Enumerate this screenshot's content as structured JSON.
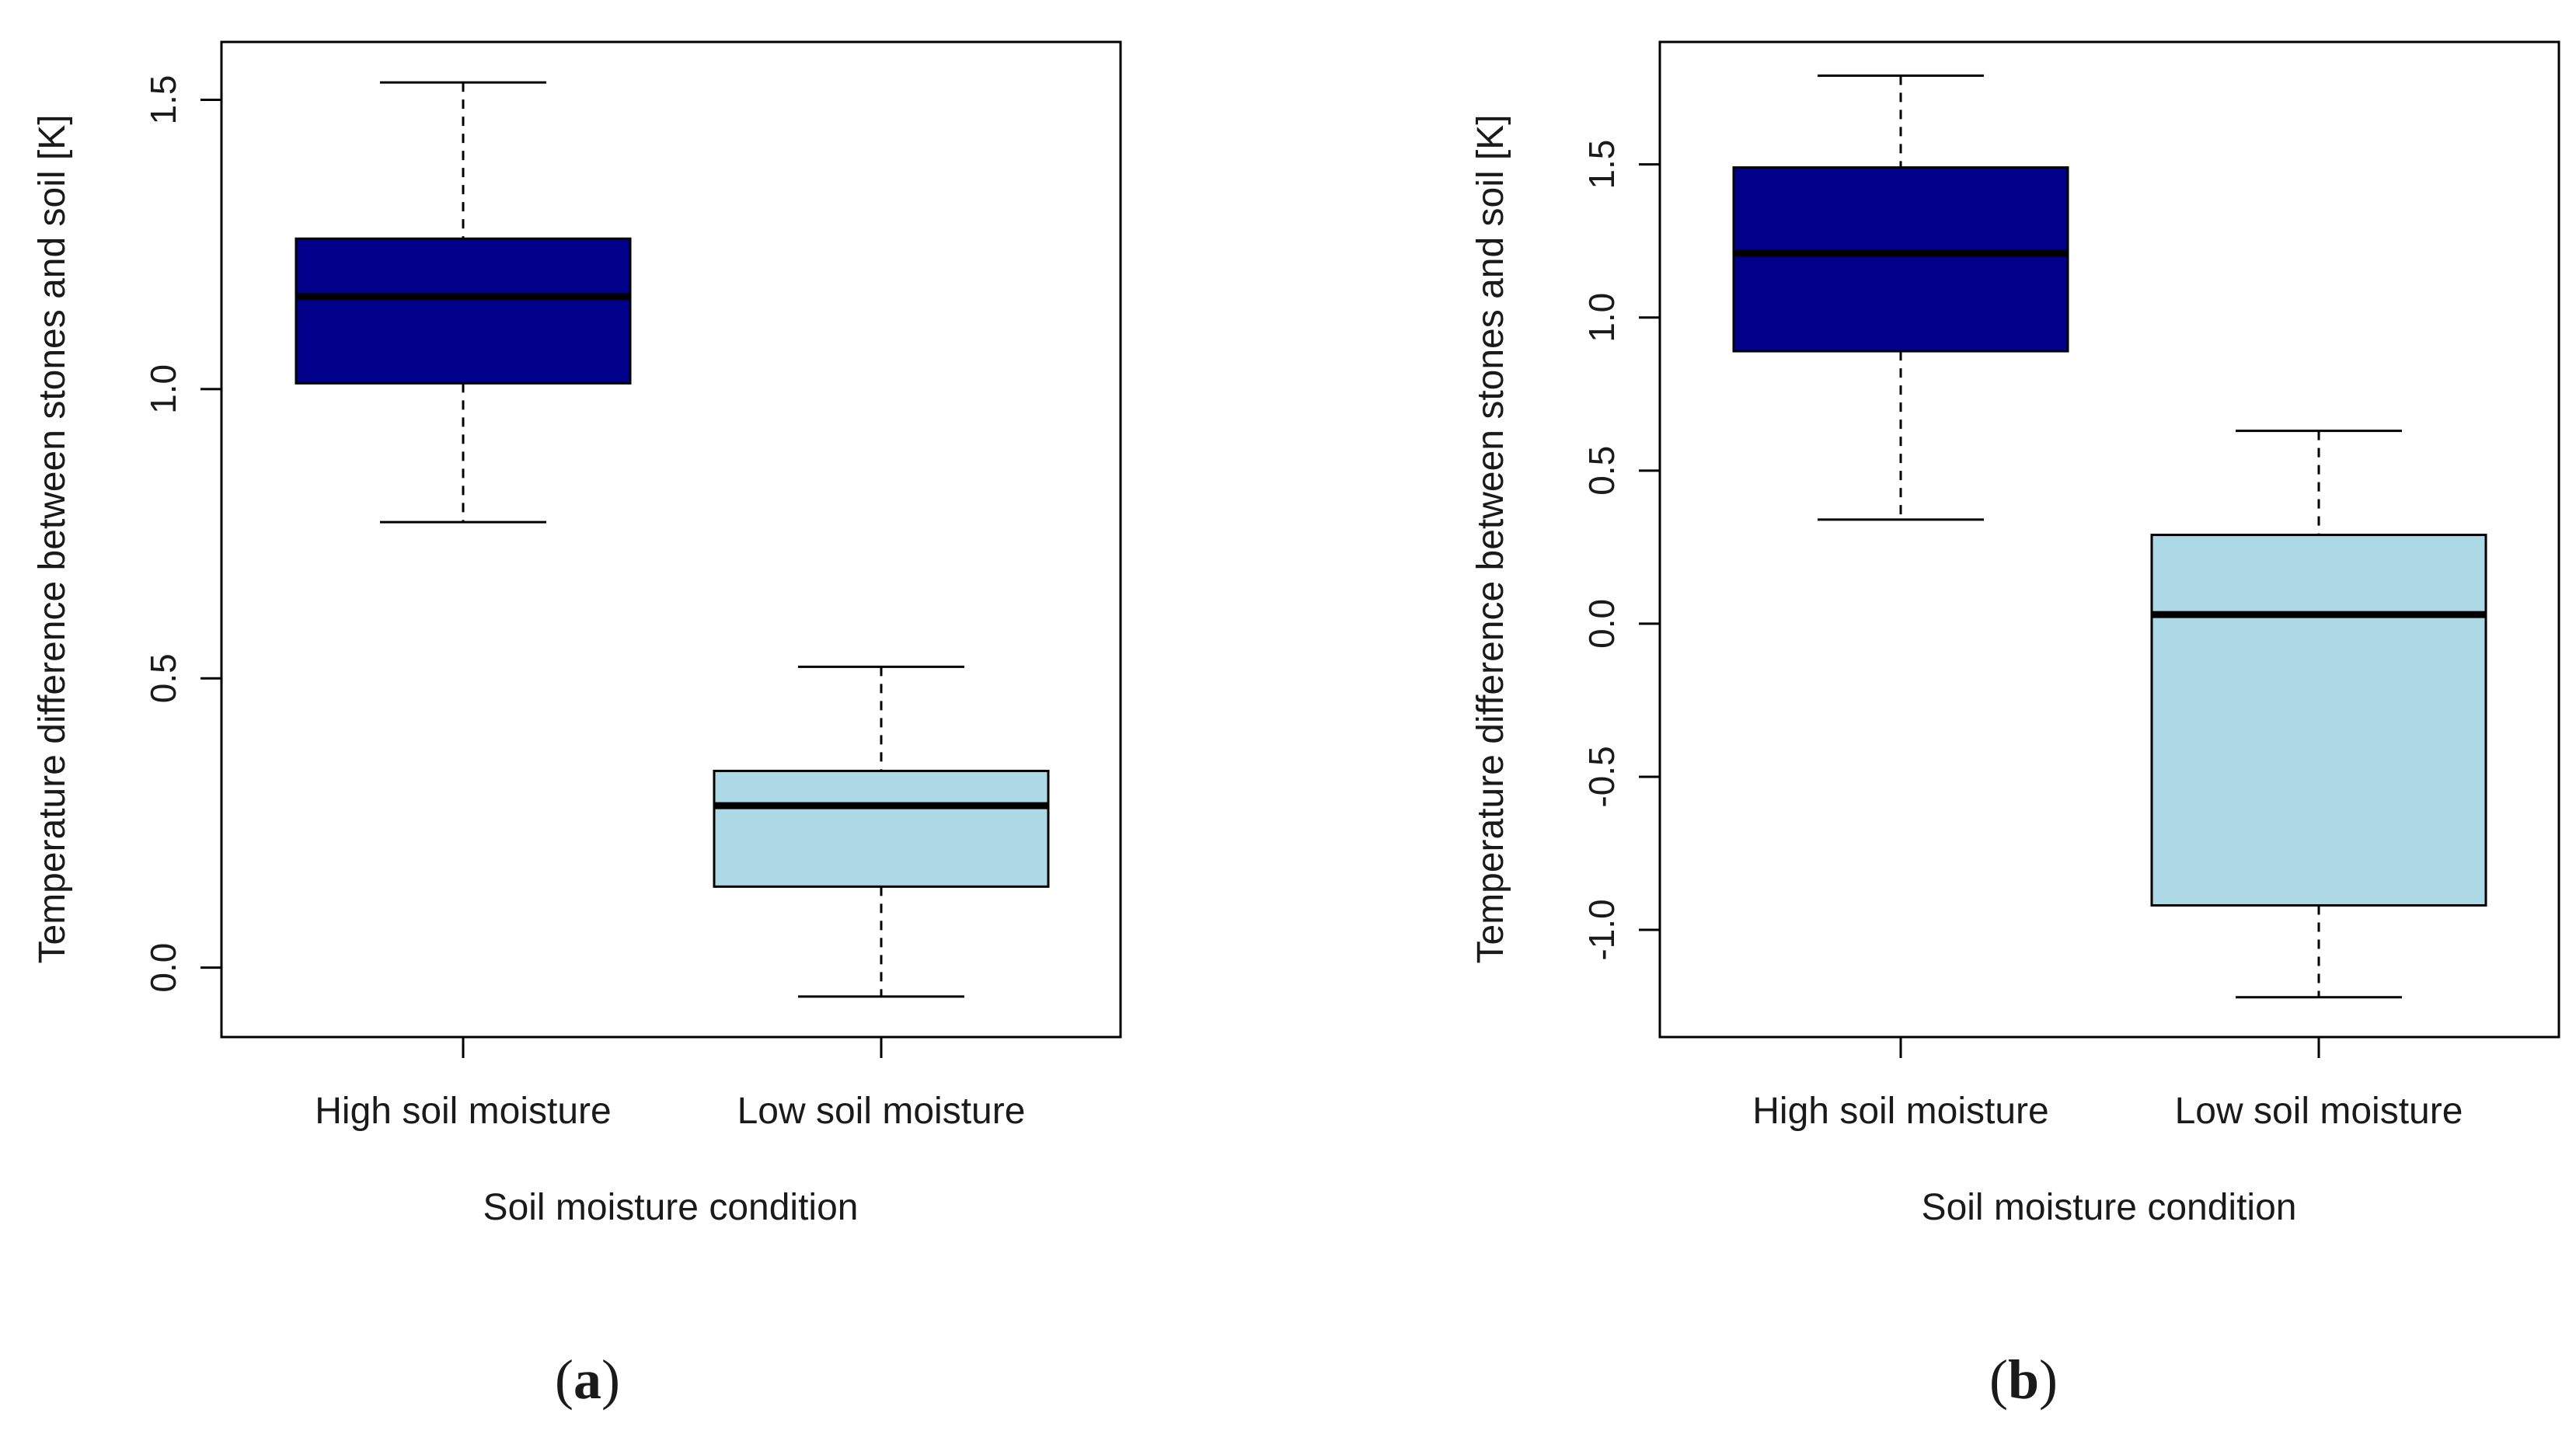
{
  "chart_data": [
    {
      "type": "boxplot",
      "panel_label": "a",
      "xlabel": "Soil moisture condition",
      "ylabel": "Temperature difference between stones and soil [K]",
      "ylim": [
        -0.12,
        1.6
      ],
      "yticks": [
        0.0,
        0.5,
        1.0,
        1.5
      ],
      "ytick_labels": [
        "0.0",
        "0.5",
        "1.0",
        "1.5"
      ],
      "categories": [
        "High soil moisture",
        "Low soil moisture"
      ],
      "boxes": [
        {
          "category": "High soil moisture",
          "whisker_low": 0.77,
          "q1": 1.01,
          "median": 1.16,
          "q3": 1.26,
          "whisker_high": 1.53,
          "color": "#00008B"
        },
        {
          "category": "Low soil moisture",
          "whisker_low": -0.05,
          "q1": 0.14,
          "median": 0.28,
          "q3": 0.34,
          "whisker_high": 0.52,
          "color": "#ADD8E6"
        }
      ]
    },
    {
      "type": "boxplot",
      "panel_label": "b",
      "xlabel": "Soil moisture condition",
      "ylabel": "Temperature difference between stones and soil [K]",
      "ylim": [
        -1.35,
        1.9
      ],
      "yticks": [
        -1.0,
        -0.5,
        0.0,
        0.5,
        1.0,
        1.5
      ],
      "ytick_labels": [
        "-1.0",
        "-0.5",
        "0.0",
        "0.5",
        "1.0",
        "1.5"
      ],
      "categories": [
        "High soil moisture",
        "Low soil moisture"
      ],
      "boxes": [
        {
          "category": "High soil moisture",
          "whisker_low": 0.34,
          "q1": 0.89,
          "median": 1.21,
          "q3": 1.49,
          "whisker_high": 1.79,
          "color": "#00008B"
        },
        {
          "category": "Low soil moisture",
          "whisker_low": -1.22,
          "q1": -0.92,
          "median": 0.03,
          "q3": 0.29,
          "whisker_high": 0.63,
          "color": "#ADD8E6"
        }
      ]
    }
  ]
}
